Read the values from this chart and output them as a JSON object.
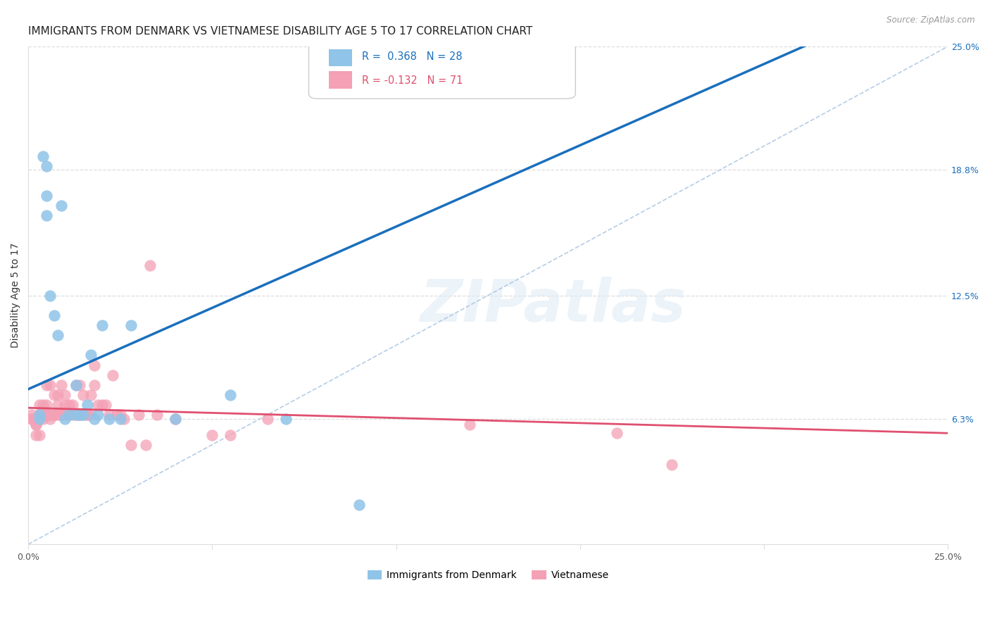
{
  "title": "IMMIGRANTS FROM DENMARK VS VIETNAMESE DISABILITY AGE 5 TO 17 CORRELATION CHART",
  "source": "Source: ZipAtlas.com",
  "ylabel": "Disability Age 5 to 17",
  "xlim": [
    0,
    0.25
  ],
  "ylim": [
    0,
    0.25
  ],
  "color_denmark": "#90c4e8",
  "color_vietnamese": "#f4a0b5",
  "line_color_denmark": "#1a6fbd",
  "line_color_vietnamese": "#e05070",
  "diag_color": "#aac4e0",
  "background_color": "#ffffff",
  "grid_color": "#dddddd",
  "R_dk": 0.368,
  "N_dk": 28,
  "R_vn": -0.132,
  "N_vn": 71,
  "legend_label_denmark": "Immigrants from Denmark",
  "legend_label_vietnamese": "Vietnamese",
  "dk_x": [
    0.003,
    0.003,
    0.004,
    0.005,
    0.005,
    0.005,
    0.006,
    0.007,
    0.008,
    0.009,
    0.01,
    0.011,
    0.013,
    0.013,
    0.014,
    0.015,
    0.016,
    0.017,
    0.018,
    0.019,
    0.02,
    0.022,
    0.025,
    0.028,
    0.04,
    0.055,
    0.07,
    0.09
  ],
  "dk_y": [
    0.065,
    0.063,
    0.195,
    0.19,
    0.175,
    0.165,
    0.125,
    0.115,
    0.105,
    0.17,
    0.063,
    0.065,
    0.065,
    0.08,
    0.065,
    0.065,
    0.07,
    0.095,
    0.063,
    0.065,
    0.11,
    0.063,
    0.063,
    0.11,
    0.063,
    0.075,
    0.063,
    0.02
  ],
  "vn_x": [
    0.001,
    0.001,
    0.001,
    0.002,
    0.002,
    0.002,
    0.003,
    0.003,
    0.003,
    0.003,
    0.004,
    0.004,
    0.004,
    0.004,
    0.005,
    0.005,
    0.005,
    0.005,
    0.006,
    0.006,
    0.006,
    0.006,
    0.007,
    0.007,
    0.007,
    0.008,
    0.008,
    0.008,
    0.009,
    0.009,
    0.009,
    0.01,
    0.01,
    0.01,
    0.011,
    0.011,
    0.012,
    0.012,
    0.013,
    0.013,
    0.014,
    0.014,
    0.014,
    0.015,
    0.015,
    0.016,
    0.016,
    0.017,
    0.017,
    0.018,
    0.018,
    0.019,
    0.02,
    0.021,
    0.022,
    0.023,
    0.024,
    0.025,
    0.026,
    0.028,
    0.03,
    0.032,
    0.033,
    0.035,
    0.04,
    0.05,
    0.055,
    0.065,
    0.12,
    0.16,
    0.175
  ],
  "vn_y": [
    0.065,
    0.063,
    0.063,
    0.06,
    0.06,
    0.055,
    0.055,
    0.065,
    0.065,
    0.07,
    0.065,
    0.065,
    0.063,
    0.07,
    0.065,
    0.065,
    0.07,
    0.08,
    0.065,
    0.063,
    0.065,
    0.08,
    0.065,
    0.065,
    0.075,
    0.065,
    0.07,
    0.075,
    0.065,
    0.065,
    0.08,
    0.065,
    0.07,
    0.075,
    0.065,
    0.07,
    0.065,
    0.07,
    0.065,
    0.08,
    0.065,
    0.065,
    0.08,
    0.065,
    0.075,
    0.065,
    0.065,
    0.065,
    0.075,
    0.08,
    0.09,
    0.07,
    0.07,
    0.07,
    0.065,
    0.085,
    0.065,
    0.065,
    0.063,
    0.05,
    0.065,
    0.05,
    0.14,
    0.065,
    0.063,
    0.055,
    0.055,
    0.063,
    0.06,
    0.056,
    0.04
  ],
  "watermark": "ZIPatlas",
  "title_fontsize": 11,
  "axis_label_fontsize": 10,
  "tick_fontsize": 9
}
